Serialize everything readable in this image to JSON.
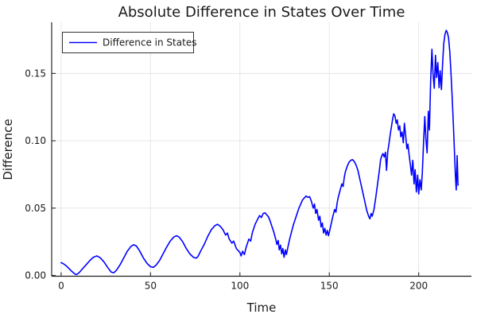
{
  "title": "Absolute Difference in States Over Time",
  "colors": {
    "line": "#0000ff",
    "grid": "#e4e4e4",
    "axis": "#2a2a2a",
    "text": "#1a1a1a",
    "legend_border": "#333333",
    "background": "#ffffff"
  },
  "legend": {
    "position": "top-left",
    "entries": [
      {
        "label": "Difference in States",
        "color": "#0000ff"
      }
    ]
  },
  "chart_data": {
    "type": "line",
    "title": "Absolute Difference in States Over Time",
    "xlabel": "Time",
    "ylabel": "Difference",
    "xlim": [
      -5.3,
      229.5
    ],
    "ylim": [
      -0.0006,
      0.188
    ],
    "x_ticks": [
      0,
      50,
      100,
      150,
      200
    ],
    "x_tick_labels": [
      "0",
      "50",
      "100",
      "150",
      "200"
    ],
    "y_ticks": [
      0,
      0.05,
      0.1,
      0.15
    ],
    "y_tick_labels": [
      "0.00",
      "0.05",
      "0.10",
      "0.15"
    ],
    "grid": true,
    "legend_position": "top-left",
    "series": [
      {
        "name": "Difference in States",
        "color": "#0000ff",
        "x": [
          0,
          1.5,
          3,
          4.5,
          6,
          7.5,
          8.5,
          10,
          12,
          14,
          16,
          18,
          20,
          22,
          24,
          26,
          28,
          29.5,
          31,
          33,
          35,
          37,
          39,
          40.5,
          42,
          44,
          46,
          48,
          50,
          51.5,
          53,
          55,
          57,
          59,
          61,
          63,
          64.5,
          66,
          68,
          70,
          72,
          74,
          75.5,
          76.5,
          78,
          80,
          82,
          84,
          86,
          87.5,
          89,
          90.5,
          92,
          93,
          94,
          95.5,
          96.5,
          98,
          99,
          100,
          100.7,
          101.5,
          102.5,
          103.5,
          105,
          106,
          107,
          108.5,
          110,
          111,
          112,
          113,
          114,
          115,
          116,
          117,
          118,
          119,
          120,
          120.7,
          121.4,
          122,
          122.7,
          123.4,
          124,
          124.7,
          125.4,
          126,
          127,
          128,
          129,
          130,
          131,
          132,
          133,
          134,
          135,
          136,
          137,
          138,
          139,
          140,
          141,
          141.7,
          142.4,
          143.1,
          144,
          144.7,
          145.4,
          146.1,
          146.8,
          147.5,
          148.2,
          148.9,
          149.5,
          150,
          151,
          152,
          153,
          153.7,
          154.4,
          155,
          156,
          157,
          157.7,
          158.4,
          159,
          160,
          161,
          162,
          163,
          164,
          165,
          166,
          167,
          168,
          169,
          170,
          171,
          172,
          172.7,
          173.4,
          174,
          175,
          176,
          177,
          178,
          178.7,
          179.4,
          180,
          180.7,
          181.4,
          182,
          182.7,
          183.4,
          184,
          184.7,
          185.4,
          186,
          186.7,
          187.4,
          188,
          188.7,
          189.4,
          190,
          190.7,
          191.4,
          192,
          192.7,
          193.4,
          194,
          194.7,
          195.4,
          196,
          196.7,
          197.4,
          198,
          198.7,
          199.4,
          200,
          200.7,
          201.4,
          202,
          202.7,
          203.4,
          204,
          204.7,
          205.4,
          206,
          206.7,
          207.4,
          208,
          208.7,
          209.4,
          210,
          210.7,
          211.4,
          212,
          212.7,
          213.4,
          214,
          214.7,
          215.4,
          216,
          216.7,
          217.4,
          218,
          218.7,
          219.4,
          220,
          220.5,
          221,
          221.5,
          222
        ],
        "y": [
          0.0095,
          0.0085,
          0.007,
          0.005,
          0.003,
          0.0013,
          0.0006,
          0.002,
          0.005,
          0.008,
          0.011,
          0.0135,
          0.0145,
          0.013,
          0.01,
          0.006,
          0.0025,
          0.002,
          0.004,
          0.008,
          0.013,
          0.018,
          0.0215,
          0.0228,
          0.022,
          0.018,
          0.013,
          0.009,
          0.0065,
          0.006,
          0.0075,
          0.011,
          0.016,
          0.021,
          0.0255,
          0.0285,
          0.0295,
          0.0285,
          0.025,
          0.02,
          0.016,
          0.0135,
          0.0128,
          0.014,
          0.018,
          0.023,
          0.029,
          0.034,
          0.037,
          0.038,
          0.0365,
          0.034,
          0.03,
          0.0315,
          0.027,
          0.024,
          0.0255,
          0.02,
          0.0185,
          0.017,
          0.0145,
          0.018,
          0.0155,
          0.021,
          0.027,
          0.0255,
          0.032,
          0.038,
          0.042,
          0.0445,
          0.043,
          0.046,
          0.0465,
          0.045,
          0.0435,
          0.04,
          0.036,
          0.032,
          0.027,
          0.023,
          0.026,
          0.019,
          0.0225,
          0.016,
          0.02,
          0.0135,
          0.019,
          0.0155,
          0.022,
          0.028,
          0.033,
          0.038,
          0.042,
          0.046,
          0.05,
          0.053,
          0.056,
          0.0575,
          0.059,
          0.058,
          0.0585,
          0.055,
          0.05,
          0.053,
          0.046,
          0.049,
          0.041,
          0.044,
          0.036,
          0.039,
          0.0315,
          0.035,
          0.03,
          0.0335,
          0.0295,
          0.032,
          0.038,
          0.044,
          0.049,
          0.047,
          0.054,
          0.058,
          0.063,
          0.068,
          0.066,
          0.073,
          0.077,
          0.081,
          0.084,
          0.0855,
          0.086,
          0.0845,
          0.082,
          0.078,
          0.072,
          0.066,
          0.06,
          0.054,
          0.048,
          0.044,
          0.042,
          0.046,
          0.044,
          0.049,
          0.058,
          0.068,
          0.078,
          0.086,
          0.089,
          0.0905,
          0.088,
          0.0915,
          0.078,
          0.092,
          0.098,
          0.104,
          0.11,
          0.116,
          0.12,
          0.1185,
          0.113,
          0.1155,
          0.108,
          0.111,
          0.103,
          0.1065,
          0.0985,
          0.113,
          0.104,
          0.094,
          0.0975,
          0.089,
          0.0815,
          0.0745,
          0.0855,
          0.068,
          0.0785,
          0.062,
          0.0745,
          0.0605,
          0.071,
          0.0635,
          0.0755,
          0.098,
          0.118,
          0.102,
          0.091,
          0.122,
          0.108,
          0.145,
          0.168,
          0.15,
          0.139,
          0.1635,
          0.147,
          0.158,
          0.1395,
          0.152,
          0.138,
          0.158,
          0.172,
          0.179,
          0.182,
          0.1805,
          0.1765,
          0.166,
          0.152,
          0.133,
          0.112,
          0.092,
          0.075,
          0.0635,
          0.089,
          0.067
        ]
      }
    ]
  }
}
